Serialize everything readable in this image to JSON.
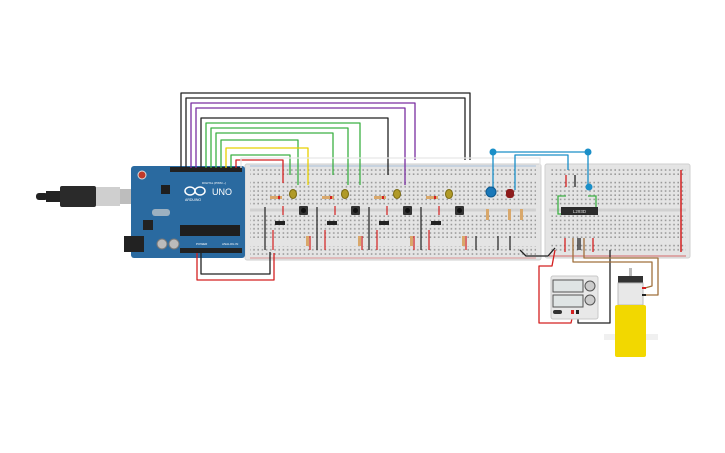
{
  "arduino": {
    "model_label": "UNO",
    "brand_label": "ARDUINO",
    "digital_label": "DIGITAL (PWM ~)",
    "power_label": "POWER",
    "analog_label": "ANALOG IN",
    "board_color": "#2a6aa0"
  },
  "driver_chip": {
    "label": "L293D"
  },
  "colors": {
    "breadboard": "#e4e4e4",
    "wire_black": "#222222",
    "wire_green": "#3cb043",
    "wire_purple": "#7a2ea0",
    "wire_yellow": "#e8d000",
    "wire_red": "#d42020",
    "wire_blue": "#1a8fc8",
    "wire_brown": "#a0703c",
    "motor_yellow": "#f2d800"
  },
  "components": {
    "yellow_leds": 4,
    "push_buttons": 4,
    "slide_switches": 4,
    "blue_led": 1,
    "red_led": 1
  }
}
